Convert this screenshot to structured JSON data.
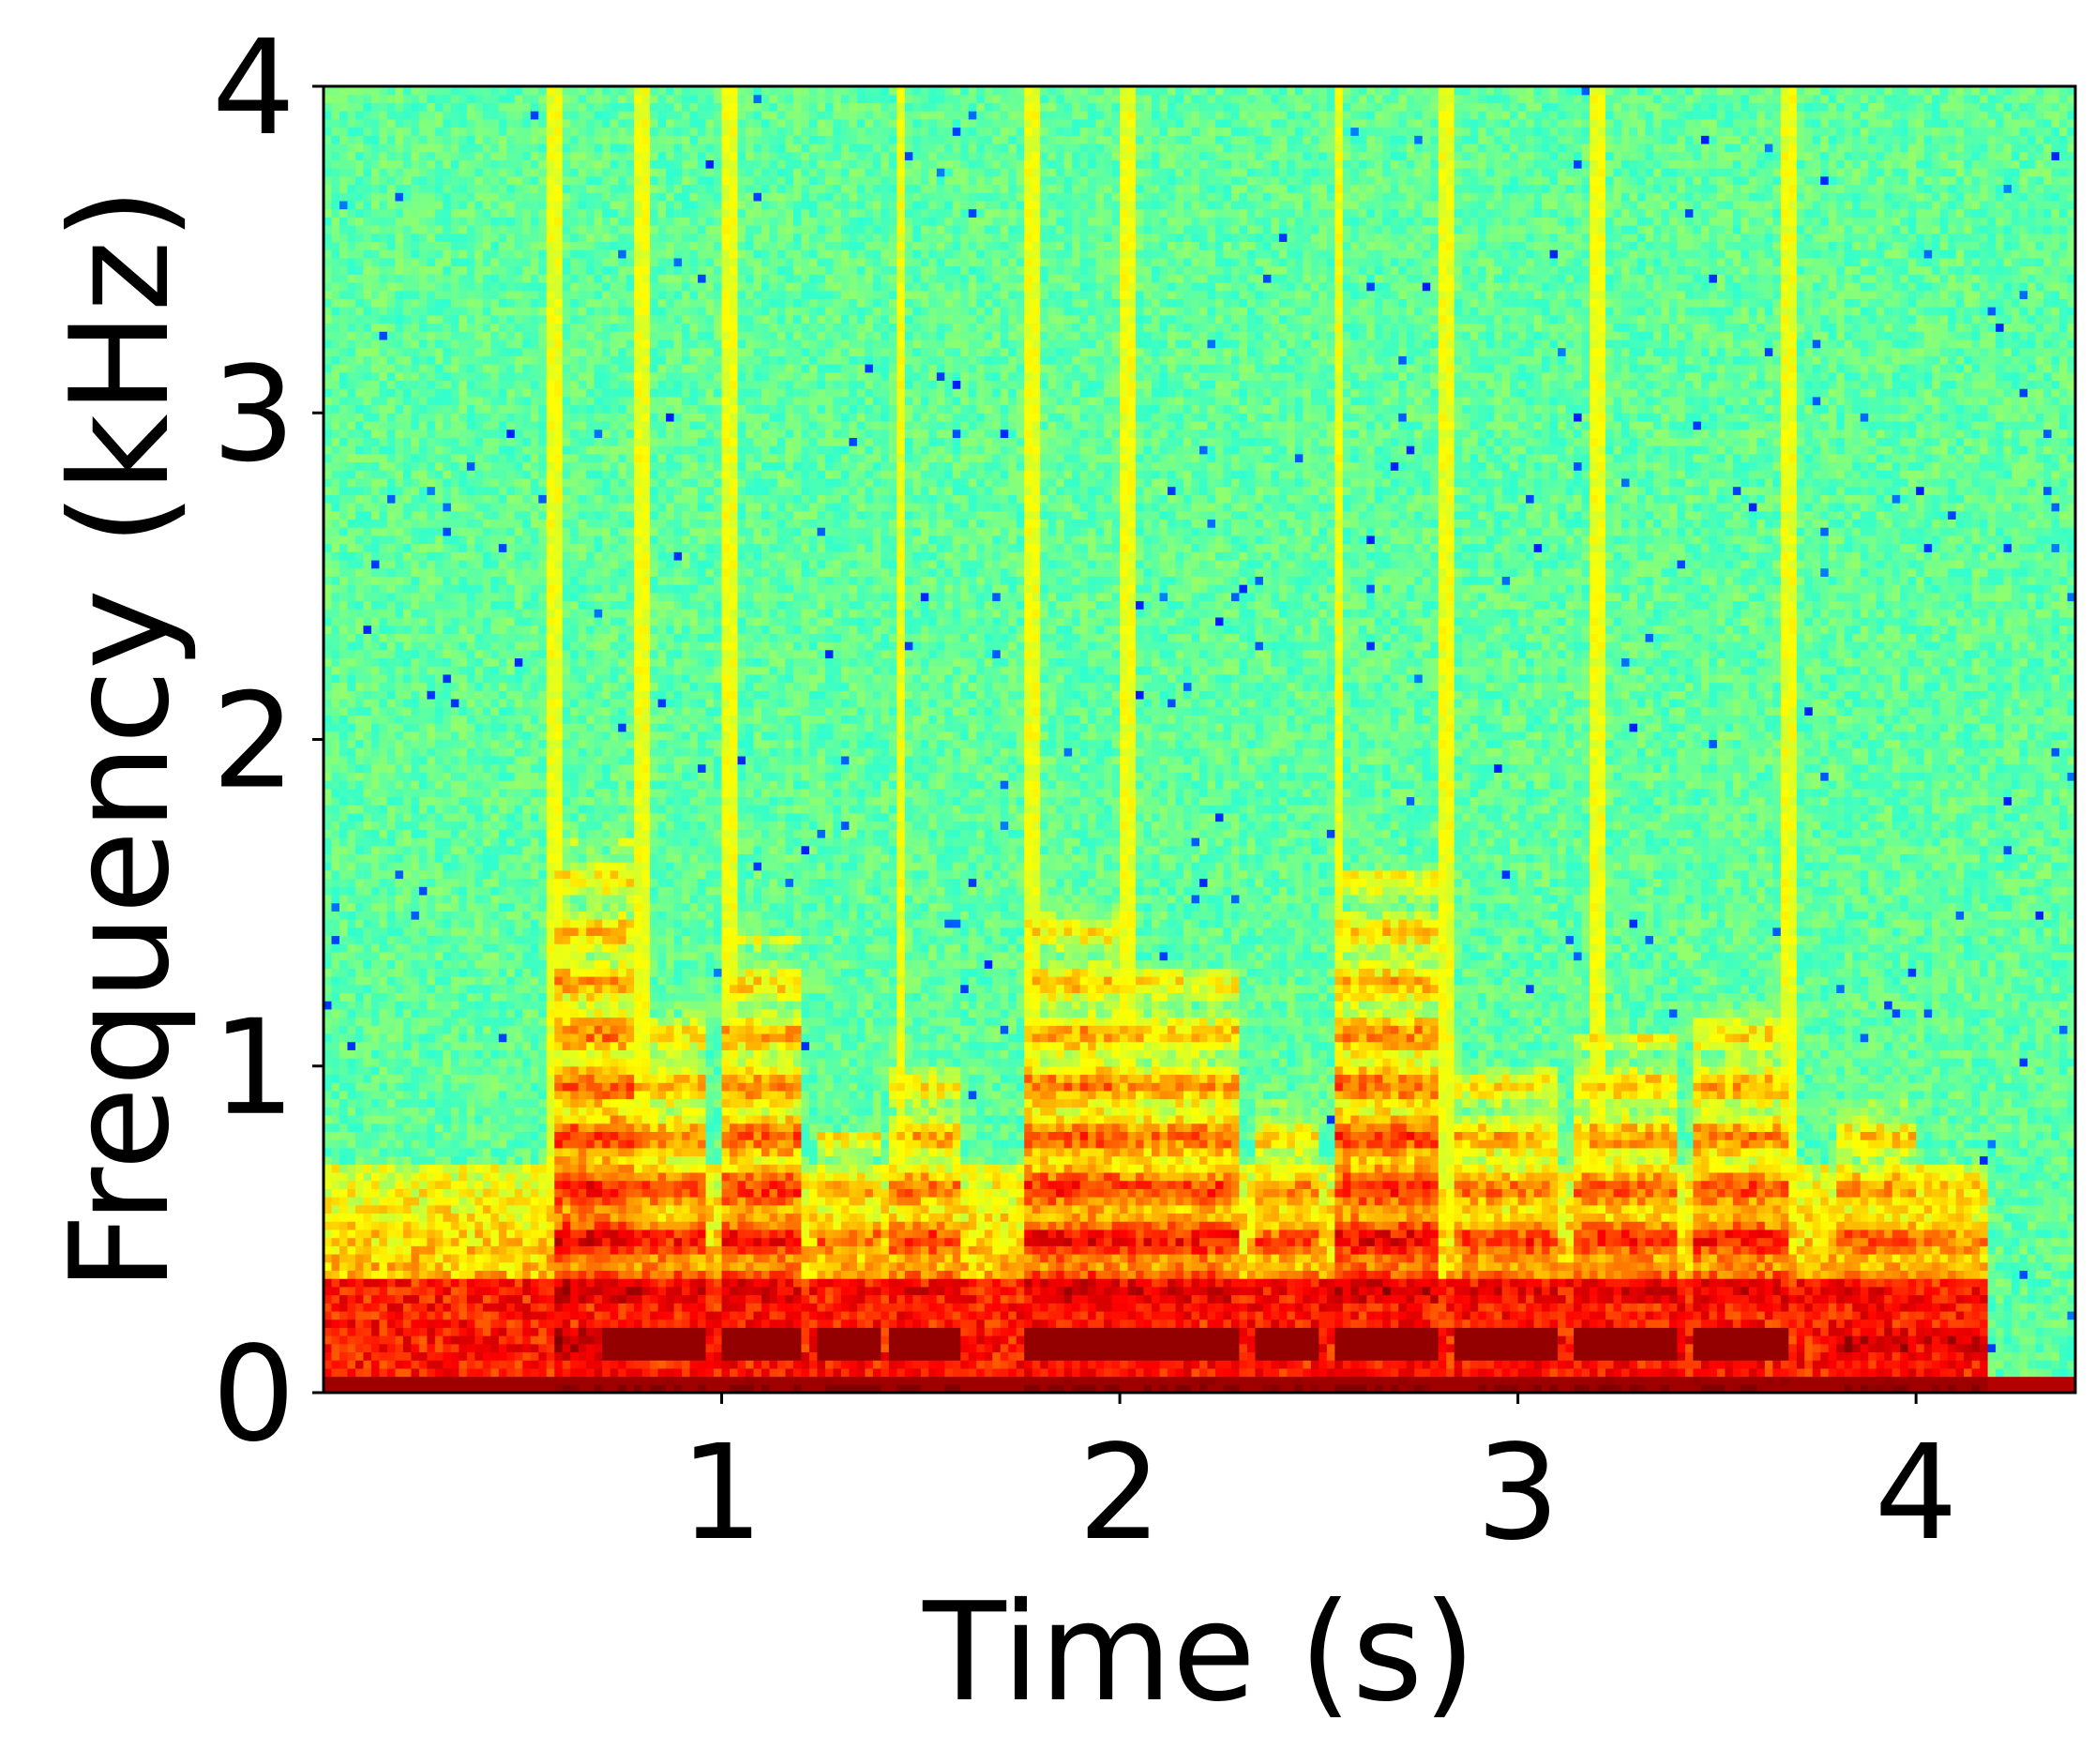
{
  "chart_data": {
    "type": "heatmap",
    "title": "",
    "xlabel": "Time (s)",
    "ylabel": "Frequency (kHz)",
    "xlim": [
      0,
      4.4
    ],
    "ylim": [
      0,
      4
    ],
    "xticks": [
      1,
      2,
      3,
      4
    ],
    "yticks": [
      0,
      1,
      2,
      3,
      4
    ],
    "xtick_labels": [
      "1",
      "2",
      "3",
      "4"
    ],
    "ytick_labels": [
      "0",
      "1",
      "2",
      "3",
      "4"
    ],
    "colormap": "jet",
    "grid": false,
    "signal_end_time": 4.17,
    "pitch_band_khz": 0.15,
    "low_freq_band_khz": [
      0,
      0.35
    ],
    "events": [
      {
        "start": 0.58,
        "end": 0.78,
        "max_freq": 1.7
      },
      {
        "start": 0.78,
        "end": 0.96,
        "max_freq": 1.2
      },
      {
        "start": 1.0,
        "end": 1.2,
        "max_freq": 1.4
      },
      {
        "start": 1.25,
        "end": 1.4,
        "max_freq": 0.8
      },
      {
        "start": 1.42,
        "end": 1.6,
        "max_freq": 1.0
      },
      {
        "start": 1.77,
        "end": 2.0,
        "max_freq": 1.5
      },
      {
        "start": 2.0,
        "end": 2.3,
        "max_freq": 1.3
      },
      {
        "start": 2.35,
        "end": 2.5,
        "max_freq": 0.9
      },
      {
        "start": 2.55,
        "end": 2.8,
        "max_freq": 1.6
      },
      {
        "start": 2.85,
        "end": 3.1,
        "max_freq": 1.0
      },
      {
        "start": 3.15,
        "end": 3.4,
        "max_freq": 1.1
      },
      {
        "start": 3.45,
        "end": 3.68,
        "max_freq": 1.2
      },
      {
        "start": 3.8,
        "end": 4.0,
        "max_freq": 0.9
      },
      {
        "start": 4.02,
        "end": 4.17,
        "max_freq": 0.7
      }
    ],
    "striations": [
      0.58,
      0.8,
      1.02,
      1.45,
      1.78,
      2.02,
      2.55,
      2.82,
      3.2,
      3.68
    ]
  }
}
